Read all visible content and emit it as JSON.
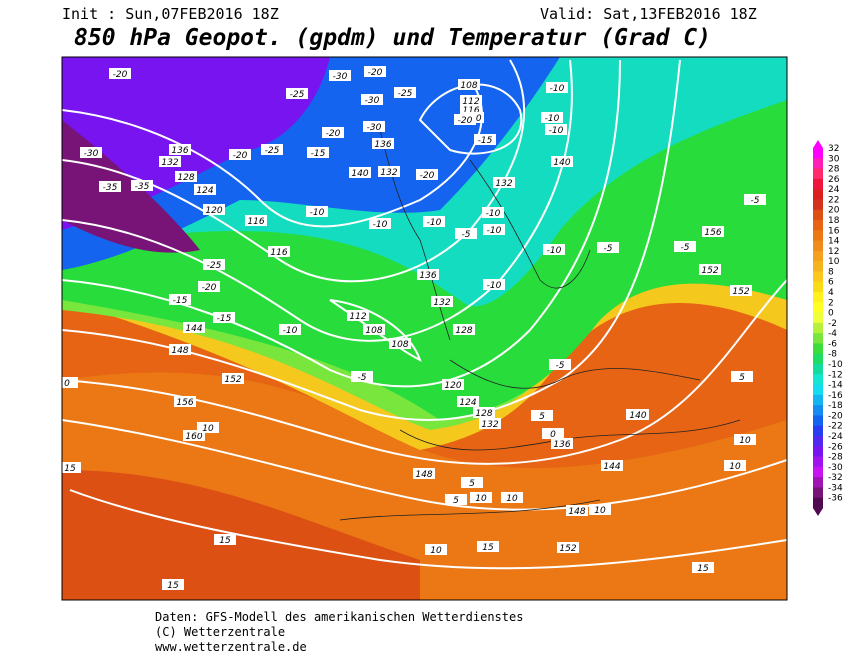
{
  "header": {
    "init": "Init : Sun,07FEB2016 18Z",
    "valid": "Valid: Sat,13FEB2016 18Z",
    "title": "850 hPa Geopot. (gpdm) und Temperatur (Grad C)"
  },
  "map_labels": [
    "-20",
    "-25",
    "-30",
    "-20",
    "-25",
    "-30",
    "108",
    "112",
    "116",
    "120",
    "-10",
    "-10",
    "-10",
    "-20",
    "-15",
    "-20",
    "-25",
    "-20",
    "-15",
    "-20",
    "136",
    "132",
    "140",
    "-30",
    "-35",
    "-35",
    "132",
    "128",
    "124",
    "120",
    "-30",
    "-25",
    "116",
    "-10",
    "-10",
    "-10",
    "136",
    "-10",
    "-10",
    "140",
    "-10",
    "-5",
    "-5",
    "-5",
    "156",
    "152",
    "152",
    "132",
    "-10",
    "-20",
    "-15",
    "116",
    "112",
    "108",
    "108",
    "136",
    "132",
    "128",
    "-10",
    "-5",
    "-15",
    "144",
    "148",
    "152",
    "156",
    "160",
    "0",
    "10",
    "15",
    "-5",
    "120",
    "124",
    "128",
    "132",
    "136",
    "140",
    "144",
    "148",
    "5",
    "5",
    "10",
    "10",
    "148",
    "152",
    "15",
    "15",
    "10",
    "15",
    "10",
    "10",
    "5",
    "0",
    "-5",
    "15",
    "140",
    "5",
    "10"
  ],
  "colorbar": {
    "values": [
      32,
      30,
      28,
      26,
      24,
      22,
      20,
      18,
      16,
      14,
      12,
      10,
      8,
      6,
      4,
      2,
      0,
      -2,
      -4,
      -6,
      -8,
      -10,
      -12,
      -14,
      -16,
      -18,
      -20,
      -22,
      -24,
      -26,
      -28,
      -30,
      -32,
      -34,
      -36
    ],
    "colors": [
      "#ff00ff",
      "#ff1fb4",
      "#ff2a6e",
      "#f0143c",
      "#dc1e1e",
      "#d2321e",
      "#dc5014",
      "#e66414",
      "#eb7814",
      "#f08c1e",
      "#f5a01e",
      "#f5b41e",
      "#fac81e",
      "#fadc14",
      "#fff01e",
      "#ffff28",
      "#f0ff3c",
      "#b4f03c",
      "#78e63c",
      "#3cdc3c",
      "#1edc64",
      "#14dca0",
      "#14e6d2",
      "#14dcf0",
      "#14b4f0",
      "#148cf0",
      "#1464f0",
      "#283cf0",
      "#5028f0",
      "#7814f0",
      "#a014f0",
      "#c814f0",
      "#a014b4",
      "#781478",
      "#500a50"
    ]
  },
  "footer": [
    "Daten: GFS-Modell des amerikanischen Wetterdienstes",
    "(C) Wetterzentrale",
    "www.wetterzentrale.de"
  ]
}
